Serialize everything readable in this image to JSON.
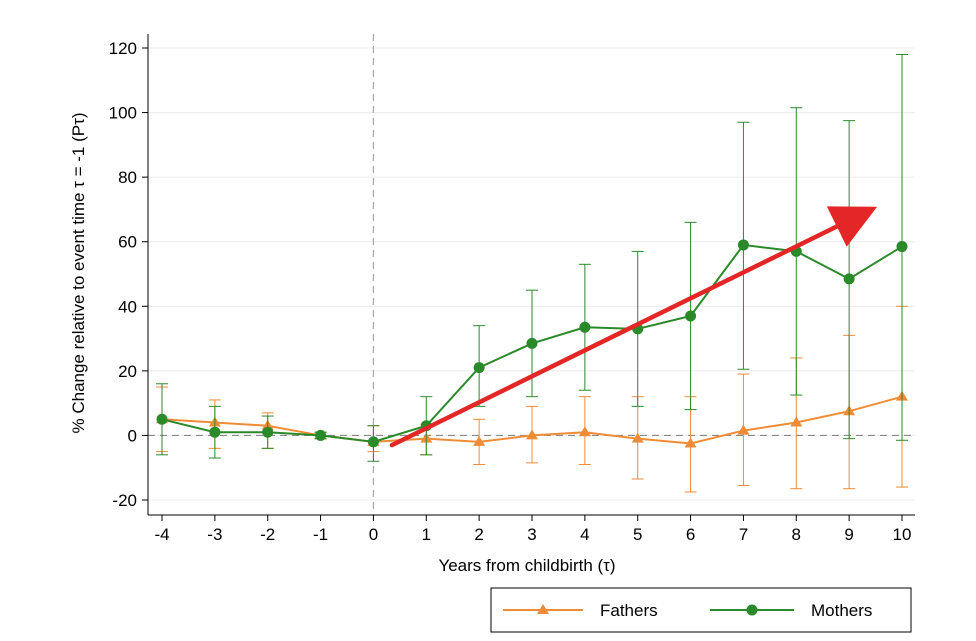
{
  "chart_data": {
    "type": "line",
    "xlabel": "Years from childbirth (τ)",
    "ylabel": "% Change relative to event time τ = -1 (Pτ)",
    "xlim": [
      -4,
      10
    ],
    "ylim": [
      -20,
      120
    ],
    "xticks": [
      -4,
      -3,
      -2,
      -1,
      0,
      1,
      2,
      3,
      4,
      5,
      6,
      7,
      8,
      9,
      10
    ],
    "yticks": [
      -20,
      0,
      20,
      40,
      60,
      80,
      100,
      120
    ],
    "x": [
      -4,
      -3,
      -2,
      -1,
      0,
      1,
      2,
      3,
      4,
      5,
      6,
      7,
      8,
      9,
      10
    ],
    "reference_lines": {
      "vertical_x": 0,
      "horizontal_y": 0
    },
    "series": [
      {
        "name": "Fathers",
        "color": "#f08c35",
        "marker": "triangle",
        "values": [
          5,
          4,
          3,
          0,
          -2,
          -1,
          -2,
          0,
          1,
          -1,
          -2.5,
          1.5,
          4,
          7.5,
          12
        ],
        "ci_low": [
          -5,
          -4,
          -4,
          -1,
          -5,
          -6,
          -9,
          -8.5,
          -9,
          -13.5,
          -17.5,
          -15.5,
          -16.5,
          -16.5,
          -16
        ],
        "ci_high": [
          15,
          11,
          7,
          1,
          3,
          3.5,
          5,
          9,
          12,
          12,
          12,
          19,
          24,
          31,
          40
        ]
      },
      {
        "name": "Mothers",
        "color": "#2a8a2a",
        "marker": "circle",
        "values": [
          5,
          1,
          1,
          0,
          -2,
          3,
          21,
          28.5,
          33.5,
          33,
          37,
          59,
          57,
          48.5,
          58.5
        ],
        "ci_low": [
          -6,
          -7,
          -4,
          -1,
          -8,
          -6,
          9,
          12,
          14,
          9,
          8,
          20.5,
          12.5,
          -1,
          -1.5
        ],
        "ci_high": [
          16,
          9,
          6,
          1,
          3,
          12,
          34,
          45,
          53,
          57,
          66,
          97,
          101.5,
          97.5,
          118
        ]
      }
    ],
    "annotation_arrow": {
      "from": [
        0.35,
        -3
      ],
      "to": [
        9.3,
        69
      ],
      "color": "#e32626"
    },
    "legend": {
      "position": "bottom-right",
      "entries": [
        "Fathers",
        "Mothers"
      ]
    }
  }
}
